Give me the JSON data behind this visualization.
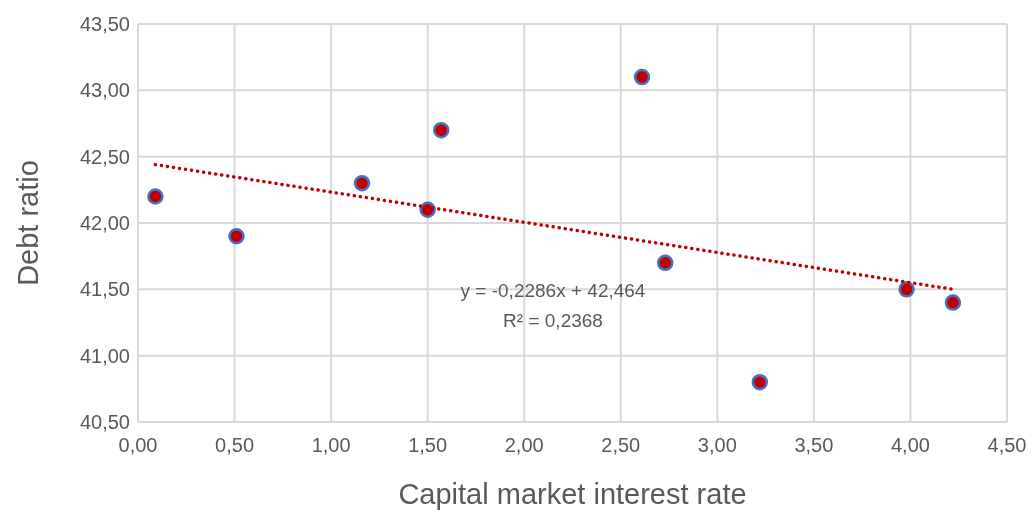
{
  "chart_data": {
    "type": "scatter",
    "xlabel": "Capital market interest rate",
    "ylabel": "Debt ratio",
    "xlim": [
      0,
      4.5
    ],
    "ylim": [
      40.5,
      43.5
    ],
    "xticks": [
      {
        "value": 0,
        "label": "0,00"
      },
      {
        "value": 0.5,
        "label": "0,50"
      },
      {
        "value": 1,
        "label": "1,00"
      },
      {
        "value": 1.5,
        "label": "1,50"
      },
      {
        "value": 2,
        "label": "2,00"
      },
      {
        "value": 2.5,
        "label": "2,50"
      },
      {
        "value": 3,
        "label": "3,00"
      },
      {
        "value": 3.5,
        "label": "3,50"
      },
      {
        "value": 4,
        "label": "4,00"
      },
      {
        "value": 4.5,
        "label": "4,50"
      }
    ],
    "yticks": [
      {
        "value": 40.5,
        "label": "40,50"
      },
      {
        "value": 41,
        "label": "41,00"
      },
      {
        "value": 41.5,
        "label": "41,50"
      },
      {
        "value": 42,
        "label": "42,00"
      },
      {
        "value": 42.5,
        "label": "42,50"
      },
      {
        "value": 43,
        "label": "43,00"
      },
      {
        "value": 43.5,
        "label": "43,50"
      }
    ],
    "grid": true,
    "marker": "circle",
    "series": [
      {
        "color": "#c00000",
        "x": [
          0.09,
          0.51,
          1.16,
          1.5,
          1.57,
          2.61,
          2.73,
          3.22,
          3.98,
          4.22
        ],
        "values": [
          42.2,
          41.9,
          42.3,
          42.1,
          42.7,
          43.1,
          41.7,
          40.8,
          41.5,
          41.4
        ]
      },
      {
        "type": "line",
        "color": "#c00000",
        "line_style": "dotted",
        "marker": "none",
        "x": [
          0.09,
          4.22
        ],
        "values": [
          42.44,
          41.5
        ]
      }
    ],
    "annotations": [
      "y = -0,2286x + 42,464",
      "R² = 0,2368"
    ]
  }
}
